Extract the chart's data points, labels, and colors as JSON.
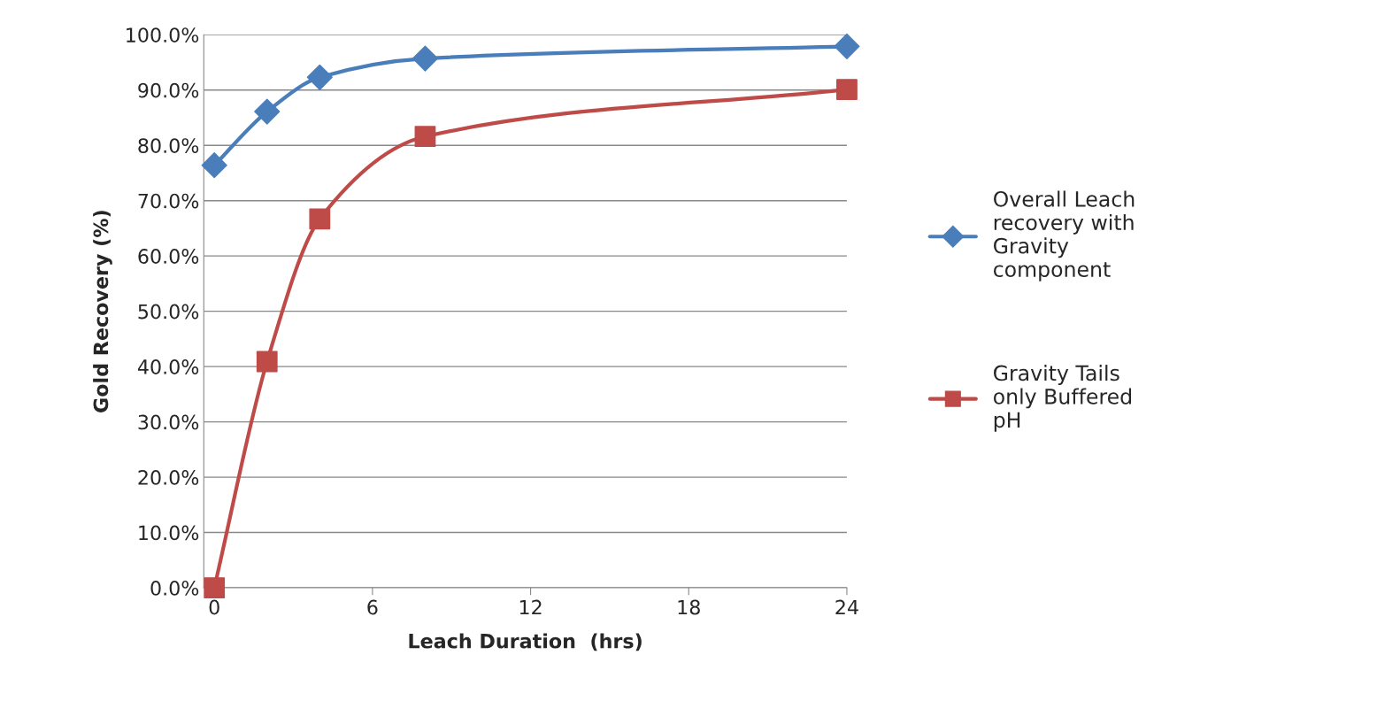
{
  "chart_data": {
    "type": "line",
    "xlabel": "Leach Duration  (hrs)",
    "ylabel": "Gold Recovery (%)",
    "x": [
      0,
      2,
      4,
      8,
      24
    ],
    "series": [
      {
        "name": "Overall Leach\nrecovery with\nGravity\ncomponent",
        "color": "#4a7ebb",
        "marker": "diamond",
        "values": [
          76.4,
          86.1,
          92.3,
          95.7,
          97.9
        ]
      },
      {
        "name": "Gravity Tails\nonly Buffered\npH",
        "color": "#be4b48",
        "marker": "square",
        "values": [
          0,
          40.9,
          66.7,
          81.6,
          90.1
        ]
      }
    ],
    "xlim": [
      -0.4,
      24
    ],
    "xticks": [
      0,
      6,
      12,
      18,
      24
    ],
    "ylim": [
      0,
      100
    ],
    "yticks": [
      {
        "value": 0,
        "label": "0.0%"
      },
      {
        "value": 10,
        "label": "10.0%"
      },
      {
        "value": 20,
        "label": "20.0%"
      },
      {
        "value": 30,
        "label": "30.0%"
      },
      {
        "value": 40,
        "label": "40.0%"
      },
      {
        "value": 50,
        "label": "50.0%"
      },
      {
        "value": 60,
        "label": "60.0%"
      },
      {
        "value": 70,
        "label": "70.0%"
      },
      {
        "value": 80,
        "label": "80.0%"
      },
      {
        "value": 90,
        "label": "90.0%"
      },
      {
        "value": 100,
        "label": "100.0%"
      }
    ],
    "grid": "y",
    "legend": "right",
    "line_style": "solid"
  }
}
